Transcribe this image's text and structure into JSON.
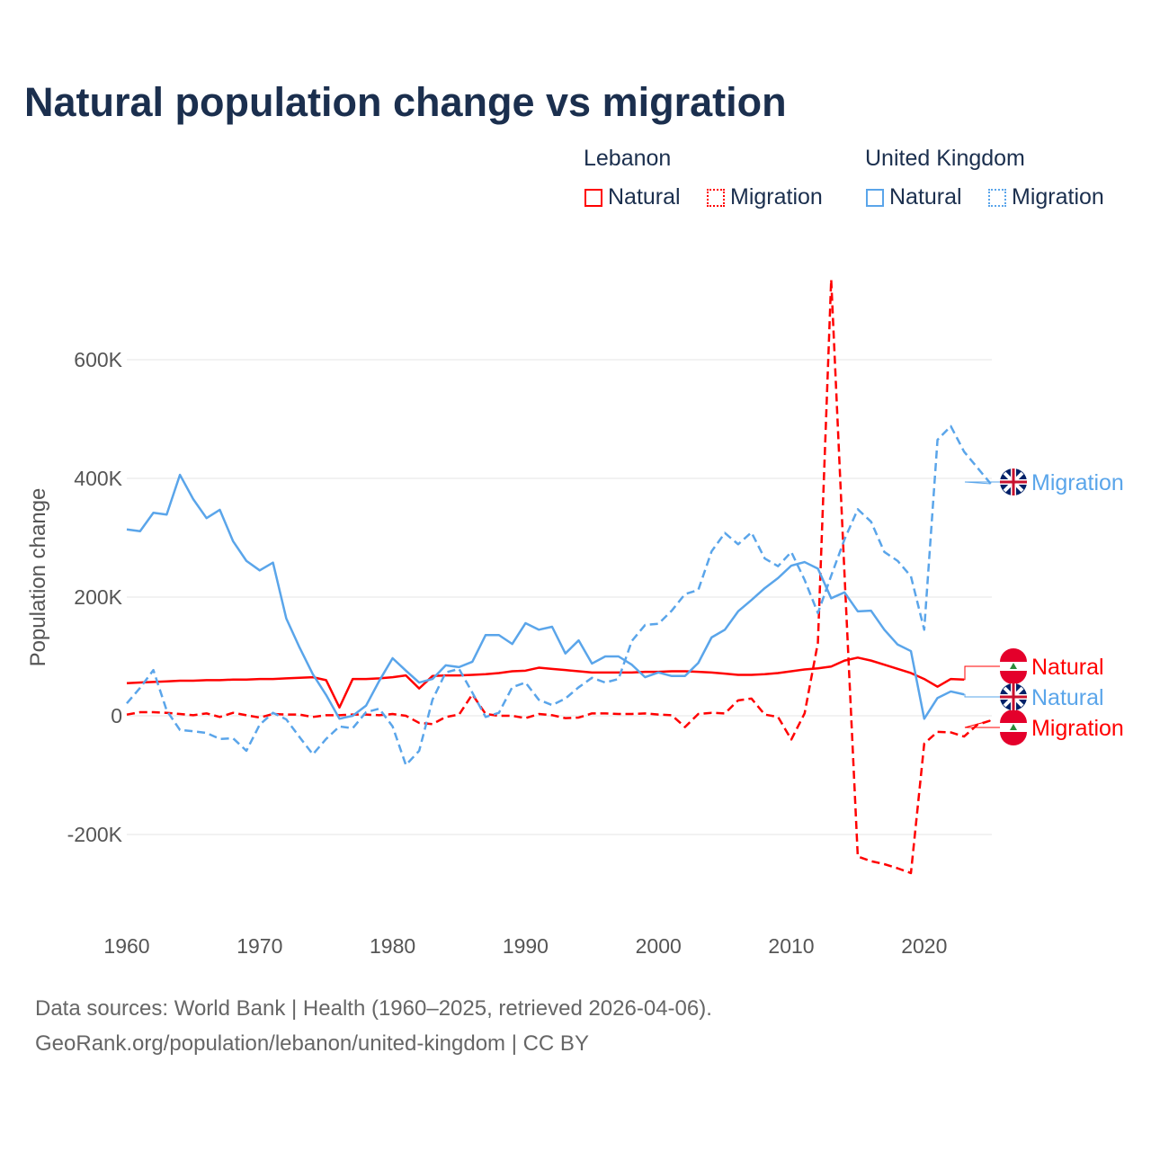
{
  "chart_data": {
    "type": "line",
    "title": "Natural population change vs migration",
    "xlabel": "",
    "ylabel": "Population change",
    "xlim": [
      1960,
      2025
    ],
    "ylim": [
      -250000,
      750000
    ],
    "x_ticks": [
      1960,
      1970,
      1980,
      1990,
      2000,
      2010,
      2020
    ],
    "x_tick_labels": [
      "1960",
      "1970",
      "1980",
      "1990",
      "2000",
      "2010",
      "2020"
    ],
    "y_ticks": [
      -200000,
      0,
      200000,
      400000,
      600000
    ],
    "y_tick_labels": [
      "-200K",
      "0",
      "200K",
      "400K",
      "600K"
    ],
    "grid": true,
    "legend_placement": "top-right",
    "legend_groups": [
      {
        "name": "Lebanon",
        "items": [
          "Natural",
          "Migration"
        ]
      },
      {
        "name": "United Kingdom",
        "items": [
          "Natural",
          "Migration"
        ]
      }
    ],
    "x_start": 1960,
    "series": [
      {
        "name": "Lebanon Natural",
        "country": "Lebanon",
        "kind": "Natural",
        "color": "#ff0000",
        "dashed": false,
        "end_label": "Natural",
        "values": [
          55,
          56,
          57,
          58,
          59,
          59,
          60,
          60,
          61,
          61,
          62,
          62,
          63,
          64,
          65,
          60,
          14,
          62,
          62,
          63,
          65,
          68,
          46,
          67,
          68,
          68,
          69,
          70,
          72,
          75,
          76,
          81,
          79,
          77,
          75,
          73,
          73,
          73,
          73,
          74,
          74,
          75,
          75,
          74,
          73,
          71,
          69,
          69,
          70,
          72,
          75,
          78,
          80,
          83,
          93,
          98,
          93,
          86,
          79,
          72,
          62,
          49,
          62,
          61,
          null,
          null
        ]
      },
      {
        "name": "Lebanon Migration",
        "country": "Lebanon",
        "kind": "Migration",
        "color": "#ff0000",
        "dashed": true,
        "end_label": "Migration",
        "values": [
          2,
          6,
          6,
          5,
          3,
          1,
          4,
          -2,
          5,
          1,
          -3,
          3,
          2,
          2,
          -2,
          1,
          1,
          2,
          2,
          1,
          3,
          0,
          -12,
          -14,
          -2,
          2,
          36,
          3,
          0,
          0,
          -4,
          3,
          1,
          -4,
          -3,
          4,
          4,
          3,
          3,
          4,
          2,
          1,
          -19,
          3,
          5,
          4,
          26,
          29,
          2,
          -2,
          -40,
          4,
          123,
          735,
          240,
          -237,
          -245,
          -250,
          -257,
          -265,
          -47,
          -27,
          -28,
          -35,
          -15,
          -8
        ]
      },
      {
        "name": "United Kingdom Natural",
        "country": "United Kingdom",
        "kind": "Natural",
        "color": "#5aa5ea",
        "dashed": false,
        "end_label": "Natural",
        "values": [
          314,
          311,
          342,
          339,
          406,
          365,
          333,
          347,
          294,
          261,
          245,
          258,
          164,
          115,
          70,
          35,
          -5,
          0,
          17,
          59,
          97,
          76,
          56,
          62,
          85,
          82,
          91,
          136,
          136,
          121,
          156,
          145,
          150,
          105,
          127,
          88,
          100,
          100,
          86,
          65,
          73,
          67,
          67,
          89,
          132,
          145,
          176,
          195,
          215,
          232,
          253,
          259,
          248,
          198,
          208,
          176,
          177,
          145,
          120,
          109,
          -5,
          30,
          41,
          36,
          null,
          null
        ]
      },
      {
        "name": "United Kingdom Migration",
        "country": "United Kingdom",
        "kind": "Migration",
        "color": "#5aa5ea",
        "dashed": true,
        "end_label": "Migration",
        "values": [
          21,
          47,
          77,
          9,
          -24,
          -26,
          -29,
          -39,
          -38,
          -59,
          -15,
          5,
          -6,
          -36,
          -65,
          -39,
          -18,
          -21,
          6,
          12,
          -18,
          -83,
          -59,
          27,
          73,
          79,
          39,
          -2,
          5,
          48,
          56,
          27,
          18,
          29,
          48,
          64,
          56,
          62,
          126,
          153,
          155,
          177,
          205,
          212,
          277,
          308,
          289,
          309,
          265,
          252,
          276,
          229,
          173,
          236,
          297,
          348,
          327,
          276,
          261,
          235,
          145,
          465,
          488,
          445,
          418,
          391
        ]
      }
    ],
    "values_unit": "thousands",
    "footer": [
      "Data sources: World Bank | Health (1960–2025, retrieved 2026-04-06).",
      "GeoRank.org/population/lebanon/united-kingdom | CC BY"
    ]
  },
  "legend": {
    "lebanon": "Lebanon",
    "uk": "United Kingdom",
    "natural": "Natural",
    "migration": "Migration"
  }
}
